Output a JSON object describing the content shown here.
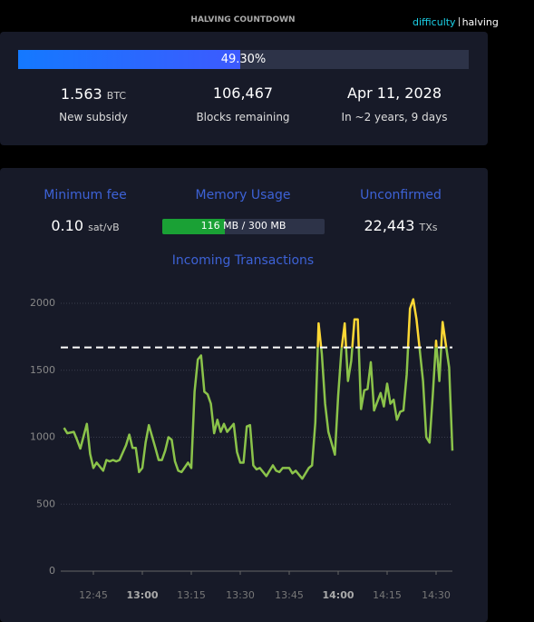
{
  "header": {
    "title": "HALVING COUNTDOWN",
    "links": [
      "difficulty",
      "halving"
    ]
  },
  "halving": {
    "progress": 49.3,
    "progress_label": "49.30%",
    "subsidy": "1.563",
    "subsidy_unit": "BTC",
    "subsidy_label": "New subsidy",
    "blocks": "106,467",
    "blocks_label": "Blocks remaining",
    "date": "Apr 11, 2028",
    "date_label": "In ~2 years, 9 days"
  },
  "mempool": {
    "min_fee": {
      "title": "Minimum fee",
      "value": "0.10",
      "unit": "sat/vB"
    },
    "memory": {
      "title": "Memory Usage",
      "used": 116,
      "total": 300,
      "label": "116 MB / 300 MB"
    },
    "unconfirmed": {
      "title": "Unconfirmed",
      "value": "22,443",
      "unit": "TXs"
    }
  },
  "chart_data": {
    "type": "line",
    "title": "Incoming Transactions",
    "color": "#8bc34a",
    "above_color": "#fdd835",
    "threshold": 1670,
    "grid": true,
    "xlim": [
      755,
      875
    ],
    "ylim": [
      0,
      2000
    ],
    "yticks": [
      0,
      500,
      1000,
      1500,
      2000
    ],
    "xticks": [
      {
        "value": 765,
        "label": "12:45"
      },
      {
        "value": 780,
        "label": "13:00",
        "bold": true
      },
      {
        "value": 795,
        "label": "13:15"
      },
      {
        "value": 810,
        "label": "13:30"
      },
      {
        "value": 825,
        "label": "13:45"
      },
      {
        "value": 840,
        "label": "14:00",
        "bold": true
      },
      {
        "value": 855,
        "label": "14:15"
      },
      {
        "value": 870,
        "label": "14:30"
      }
    ],
    "x": [
      756,
      757,
      759,
      760,
      761,
      763,
      764,
      765,
      766,
      768,
      769,
      770,
      771,
      772,
      773,
      775,
      776,
      777,
      778,
      779,
      780,
      781,
      782,
      784,
      785,
      786,
      787,
      788,
      789,
      790,
      791,
      792,
      794,
      795,
      796,
      797,
      798,
      799,
      800,
      801,
      802,
      803,
      804,
      805,
      806,
      808,
      809,
      810,
      811,
      812,
      813,
      814,
      815,
      816,
      818,
      819,
      820,
      821,
      822,
      823,
      824,
      825,
      826,
      827,
      829,
      830,
      831,
      832,
      833,
      834,
      835,
      836,
      837,
      839,
      840,
      841,
      842,
      843,
      844,
      845,
      846,
      847,
      848,
      849,
      850,
      851,
      853,
      854,
      855,
      856,
      857,
      858,
      859,
      860,
      861,
      862,
      863,
      864,
      866,
      867,
      868,
      869,
      870,
      871,
      872,
      874,
      875
    ],
    "values": [
      1070,
      1030,
      1040,
      980,
      915,
      1100,
      875,
      770,
      810,
      750,
      830,
      820,
      830,
      820,
      830,
      940,
      1020,
      920,
      920,
      740,
      770,
      960,
      1090,
      920,
      830,
      830,
      900,
      1000,
      980,
      820,
      750,
      740,
      810,
      770,
      1340,
      1580,
      1610,
      1340,
      1320,
      1250,
      1030,
      1130,
      1040,
      1100,
      1040,
      1100,
      890,
      810,
      810,
      1080,
      1090,
      790,
      760,
      770,
      710,
      750,
      790,
      750,
      740,
      770,
      770,
      770,
      730,
      750,
      690,
      730,
      770,
      790,
      1110,
      1850,
      1620,
      1250,
      1040,
      870,
      1310,
      1650,
      1850,
      1420,
      1570,
      1880,
      1880,
      1210,
      1350,
      1360,
      1560,
      1200,
      1330,
      1230,
      1400,
      1250,
      1280,
      1130,
      1190,
      1200,
      1470,
      1960,
      2030,
      1880,
      1420,
      1000,
      960,
      1320,
      1720,
      1420,
      1860,
      1520,
      900
    ]
  }
}
